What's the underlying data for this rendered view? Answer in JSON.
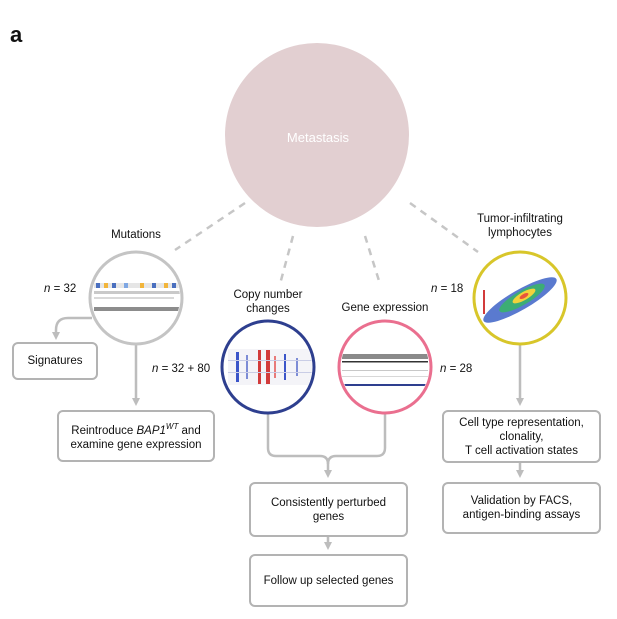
{
  "panel_letter": "a",
  "center": {
    "label": "Metastasis",
    "fill": "#e2cfd1"
  },
  "colors": {
    "connector": "#bdbdbd",
    "mutations_ring": "#c4c4c4",
    "copy_number_ring": "#2e3f8f",
    "gene_expression_ring": "#ea6f8f",
    "til_ring": "#d8c62a",
    "box_border": "#b3b3b3"
  },
  "nodes": {
    "mutations": {
      "title": "Mutations",
      "n_prefix": "n",
      "n_value": " = 32"
    },
    "copy_number": {
      "title_line1": "Copy number",
      "title_line2": "changes",
      "n_prefix": "n",
      "n_value": " = 32 + 80"
    },
    "gene_expression": {
      "title": "Gene expression",
      "n_prefix": "n",
      "n_value": " = 28"
    },
    "til": {
      "title_line1": "Tumor-infiltrating",
      "title_line2": "lymphocytes",
      "n_prefix": "n",
      "n_value": " = 18"
    }
  },
  "boxes": {
    "signatures": "Signatures",
    "reintroduce": {
      "pre": "Reintroduce ",
      "gene": "BAP1",
      "sup": "WT",
      "post": " and",
      "line2": "examine gene expression"
    },
    "celltype": {
      "line1": "Cell type representation,",
      "line2": "clonality,",
      "line3": "T cell activation states"
    },
    "validation": {
      "line1": "Validation by FACS,",
      "line2": "antigen-binding assays"
    },
    "consistent": {
      "line1": "Consistently perturbed",
      "line2": "genes"
    },
    "followup": "Follow up selected genes"
  }
}
